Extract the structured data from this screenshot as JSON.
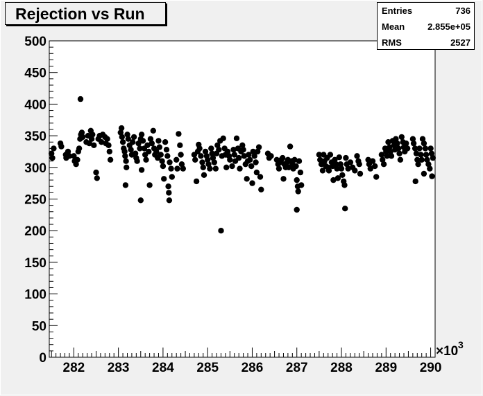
{
  "title": "Rejection vs Run",
  "stats": [
    {
      "label": "Entries",
      "value": "736"
    },
    {
      "label": "Mean",
      "value": "2.855e+05"
    },
    {
      "label": "RMS",
      "value": "2527"
    }
  ],
  "axis_exponent_base": "×10",
  "axis_exponent_power": "3",
  "colors": {
    "background": "#f0f0f0",
    "plot": "#ffffff",
    "marker": "#000000"
  },
  "chart_data": {
    "type": "scatter",
    "title": "Rejection vs Run",
    "xlabel": "",
    "ylabel": "",
    "x_unit_multiplier": 1000,
    "xlim": [
      281.45,
      290.1
    ],
    "ylim": [
      0,
      500
    ],
    "xticks": [
      282,
      283,
      284,
      285,
      286,
      287,
      288,
      289,
      290
    ],
    "yticks": [
      0,
      50,
      100,
      150,
      200,
      250,
      300,
      350,
      400,
      450,
      500
    ],
    "grid": false,
    "legend": "none",
    "points": [
      [
        281.5,
        322
      ],
      [
        281.52,
        315
      ],
      [
        281.55,
        330
      ],
      [
        281.7,
        338
      ],
      [
        281.72,
        333
      ],
      [
        281.82,
        320
      ],
      [
        281.83,
        315
      ],
      [
        281.87,
        325
      ],
      [
        281.9,
        318
      ],
      [
        282.0,
        318
      ],
      [
        282.02,
        310
      ],
      [
        282.05,
        305
      ],
      [
        282.08,
        312
      ],
      [
        282.1,
        325
      ],
      [
        282.12,
        330
      ],
      [
        282.14,
        345
      ],
      [
        282.16,
        352
      ],
      [
        282.18,
        355
      ],
      [
        282.2,
        348
      ],
      [
        282.15,
        408
      ],
      [
        282.28,
        340
      ],
      [
        282.32,
        350
      ],
      [
        282.35,
        338
      ],
      [
        282.38,
        358
      ],
      [
        282.4,
        345
      ],
      [
        282.42,
        352
      ],
      [
        282.45,
        335
      ],
      [
        282.5,
        292
      ],
      [
        282.52,
        283
      ],
      [
        282.55,
        345
      ],
      [
        282.58,
        350
      ],
      [
        282.62,
        340
      ],
      [
        282.65,
        352
      ],
      [
        282.7,
        348
      ],
      [
        282.72,
        338
      ],
      [
        282.75,
        345
      ],
      [
        282.78,
        335
      ],
      [
        282.8,
        325
      ],
      [
        282.82,
        312
      ],
      [
        283.05,
        355
      ],
      [
        283.07,
        362
      ],
      [
        283.08,
        348
      ],
      [
        283.1,
        340
      ],
      [
        283.12,
        330
      ],
      [
        283.14,
        325
      ],
      [
        283.15,
        318
      ],
      [
        283.17,
        310
      ],
      [
        283.18,
        300
      ],
      [
        283.16,
        272
      ],
      [
        283.2,
        352
      ],
      [
        283.22,
        345
      ],
      [
        283.25,
        335
      ],
      [
        283.28,
        328
      ],
      [
        283.3,
        320
      ],
      [
        283.32,
        340
      ],
      [
        283.35,
        348
      ],
      [
        283.38,
        322
      ],
      [
        283.4,
        315
      ],
      [
        283.42,
        310
      ],
      [
        283.45,
        338
      ],
      [
        283.48,
        330
      ],
      [
        283.5,
        345
      ],
      [
        283.52,
        352
      ],
      [
        283.5,
        248
      ],
      [
        283.52,
        296
      ],
      [
        283.55,
        342
      ],
      [
        283.58,
        330
      ],
      [
        283.6,
        320
      ],
      [
        283.62,
        312
      ],
      [
        283.65,
        335
      ],
      [
        283.68,
        325
      ],
      [
        283.7,
        272
      ],
      [
        283.72,
        345
      ],
      [
        283.75,
        338
      ],
      [
        283.78,
        358
      ],
      [
        283.8,
        330
      ],
      [
        283.82,
        320
      ],
      [
        283.85,
        325
      ],
      [
        283.88,
        315
      ],
      [
        283.9,
        342
      ],
      [
        283.92,
        332
      ],
      [
        283.95,
        320
      ],
      [
        283.98,
        310
      ],
      [
        284.0,
        302
      ],
      [
        284.02,
        282
      ],
      [
        284.05,
        340
      ],
      [
        284.08,
        328
      ],
      [
        284.1,
        318
      ],
      [
        284.12,
        270
      ],
      [
        284.13,
        260
      ],
      [
        284.14,
        248
      ],
      [
        284.15,
        308
      ],
      [
        284.18,
        298
      ],
      [
        284.2,
        285
      ],
      [
        284.3,
        312
      ],
      [
        284.32,
        298
      ],
      [
        284.35,
        353
      ],
      [
        284.38,
        335
      ],
      [
        284.4,
        320
      ],
      [
        284.42,
        305
      ],
      [
        284.45,
        298
      ],
      [
        284.7,
        320
      ],
      [
        284.72,
        312
      ],
      [
        284.75,
        278
      ],
      [
        284.78,
        325
      ],
      [
        284.8,
        336
      ],
      [
        284.82,
        330
      ],
      [
        284.85,
        318
      ],
      [
        284.88,
        308
      ],
      [
        284.9,
        300
      ],
      [
        284.92,
        288
      ],
      [
        284.95,
        325
      ],
      [
        284.98,
        318
      ],
      [
        285.0,
        312
      ],
      [
        285.02,
        305
      ],
      [
        285.05,
        298
      ],
      [
        285.08,
        330
      ],
      [
        285.1,
        322
      ],
      [
        285.12,
        315
      ],
      [
        285.15,
        308
      ],
      [
        285.18,
        298
      ],
      [
        285.2,
        322
      ],
      [
        285.22,
        335
      ],
      [
        285.25,
        328
      ],
      [
        285.28,
        342
      ],
      [
        285.3,
        200
      ],
      [
        285.32,
        318
      ],
      [
        285.35,
        346
      ],
      [
        285.38,
        330
      ],
      [
        285.4,
        320
      ],
      [
        285.42,
        300
      ],
      [
        285.45,
        325
      ],
      [
        285.48,
        318
      ],
      [
        285.5,
        312
      ],
      [
        285.55,
        302
      ],
      [
        285.58,
        328
      ],
      [
        285.6,
        320
      ],
      [
        285.62,
        310
      ],
      [
        285.65,
        346
      ],
      [
        285.68,
        330
      ],
      [
        285.7,
        315
      ],
      [
        285.72,
        298
      ],
      [
        285.75,
        325
      ],
      [
        285.78,
        335
      ],
      [
        285.8,
        328
      ],
      [
        285.82,
        318
      ],
      [
        285.85,
        305
      ],
      [
        285.88,
        282
      ],
      [
        285.9,
        310
      ],
      [
        285.92,
        320
      ],
      [
        285.95,
        312
      ],
      [
        285.98,
        302
      ],
      [
        286.0,
        275
      ],
      [
        286.02,
        325
      ],
      [
        286.05,
        318
      ],
      [
        286.08,
        308
      ],
      [
        286.1,
        292
      ],
      [
        286.12,
        325
      ],
      [
        286.15,
        332
      ],
      [
        286.18,
        285
      ],
      [
        286.2,
        265
      ],
      [
        286.35,
        322
      ],
      [
        286.38,
        315
      ],
      [
        286.42,
        318
      ],
      [
        286.55,
        312
      ],
      [
        286.58,
        305
      ],
      [
        286.6,
        298
      ],
      [
        286.62,
        308
      ],
      [
        286.65,
        312
      ],
      [
        286.68,
        315
      ],
      [
        286.7,
        282
      ],
      [
        286.72,
        305
      ],
      [
        286.75,
        300
      ],
      [
        286.78,
        308
      ],
      [
        286.8,
        312
      ],
      [
        286.82,
        300
      ],
      [
        286.85,
        333
      ],
      [
        286.88,
        310
      ],
      [
        286.9,
        305
      ],
      [
        286.92,
        298
      ],
      [
        286.95,
        312
      ],
      [
        286.98,
        302
      ],
      [
        287.0,
        280
      ],
      [
        287.02,
        270
      ],
      [
        287.03,
        262
      ],
      [
        287.0,
        233
      ],
      [
        287.05,
        310
      ],
      [
        287.08,
        292
      ],
      [
        287.1,
        272
      ],
      [
        287.5,
        320
      ],
      [
        287.52,
        312
      ],
      [
        287.55,
        305
      ],
      [
        287.58,
        295
      ],
      [
        287.6,
        320
      ],
      [
        287.62,
        310
      ],
      [
        287.65,
        302
      ],
      [
        287.68,
        315
      ],
      [
        287.7,
        300
      ],
      [
        287.72,
        295
      ],
      [
        287.75,
        320
      ],
      [
        287.78,
        308
      ],
      [
        287.8,
        302
      ],
      [
        287.82,
        280
      ],
      [
        287.85,
        312
      ],
      [
        287.88,
        305
      ],
      [
        287.9,
        298
      ],
      [
        287.92,
        283
      ],
      [
        287.95,
        316
      ],
      [
        287.98,
        305
      ],
      [
        288.0,
        298
      ],
      [
        288.02,
        288
      ],
      [
        288.05,
        278
      ],
      [
        288.07,
        272
      ],
      [
        288.08,
        235
      ],
      [
        288.1,
        315
      ],
      [
        288.12,
        305
      ],
      [
        288.15,
        298
      ],
      [
        288.2,
        308
      ],
      [
        288.25,
        300
      ],
      [
        288.3,
        295
      ],
      [
        288.35,
        318
      ],
      [
        288.38,
        310
      ],
      [
        288.4,
        305
      ],
      [
        288.42,
        290
      ],
      [
        288.6,
        312
      ],
      [
        288.62,
        305
      ],
      [
        288.65,
        298
      ],
      [
        288.7,
        310
      ],
      [
        288.75,
        302
      ],
      [
        288.78,
        285
      ],
      [
        288.9,
        320
      ],
      [
        288.92,
        312
      ],
      [
        288.95,
        305
      ],
      [
        288.98,
        330
      ],
      [
        289.0,
        325
      ],
      [
        289.02,
        318
      ],
      [
        289.05,
        340
      ],
      [
        289.08,
        332
      ],
      [
        289.1,
        325
      ],
      [
        289.12,
        318
      ],
      [
        289.15,
        342
      ],
      [
        289.18,
        335
      ],
      [
        289.2,
        328
      ],
      [
        289.22,
        345
      ],
      [
        289.25,
        338
      ],
      [
        289.28,
        330
      ],
      [
        289.3,
        322
      ],
      [
        289.32,
        312
      ],
      [
        289.35,
        348
      ],
      [
        289.38,
        340
      ],
      [
        289.4,
        332
      ],
      [
        289.42,
        325
      ],
      [
        289.45,
        338
      ],
      [
        289.48,
        330
      ],
      [
        289.6,
        345
      ],
      [
        289.62,
        338
      ],
      [
        289.65,
        330
      ],
      [
        289.68,
        322
      ],
      [
        289.7,
        312
      ],
      [
        289.72,
        305
      ],
      [
        289.66,
        278
      ],
      [
        289.75,
        330
      ],
      [
        289.78,
        320
      ],
      [
        289.8,
        312
      ],
      [
        289.82,
        345
      ],
      [
        289.85,
        338
      ],
      [
        289.88,
        330
      ],
      [
        289.9,
        320
      ],
      [
        289.92,
        312
      ],
      [
        289.95,
        305
      ],
      [
        289.98,
        298
      ],
      [
        290.0,
        330
      ],
      [
        290.02,
        322
      ],
      [
        290.05,
        315
      ],
      [
        289.85,
        290
      ],
      [
        290.03,
        286
      ]
    ]
  }
}
